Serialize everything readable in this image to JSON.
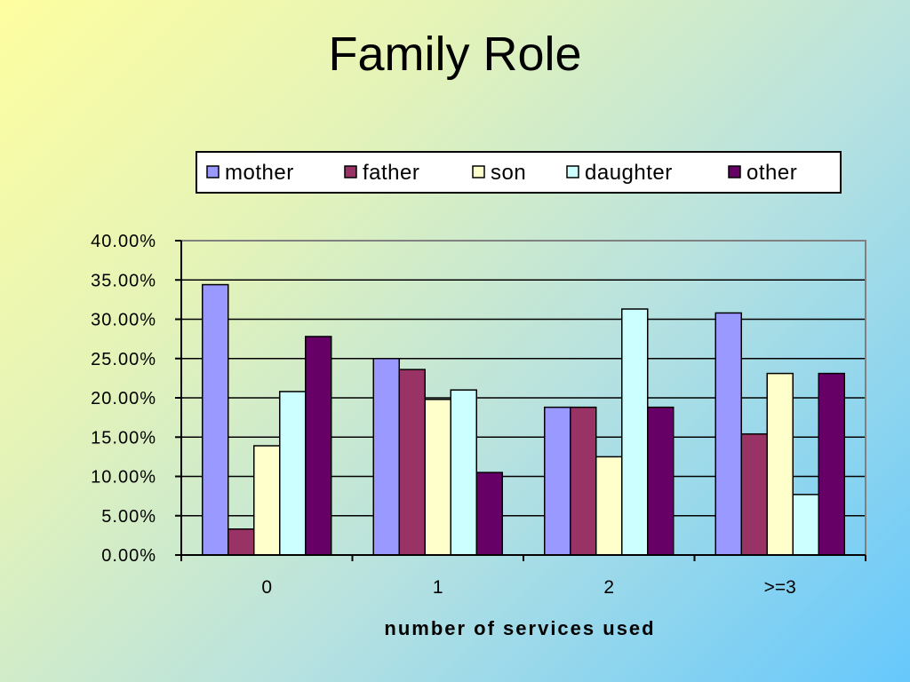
{
  "title": "Family Role",
  "chart_data": {
    "type": "bar",
    "title": "Family Role",
    "xlabel": "number of services used",
    "ylabel": "",
    "categories": [
      "0",
      "1",
      "2",
      ">=3"
    ],
    "y_ticks": [
      "0.00%",
      "5.00%",
      "10.00%",
      "15.00%",
      "20.00%",
      "25.00%",
      "30.00%",
      "35.00%",
      "40.00%"
    ],
    "ylim": [
      0,
      40
    ],
    "grid": true,
    "legend_position": "top",
    "series": [
      {
        "name": "mother",
        "color": "#9999ff",
        "values": [
          34.4,
          25.0,
          18.8,
          30.8
        ]
      },
      {
        "name": "father",
        "color": "#993366",
        "values": [
          3.3,
          23.6,
          18.8,
          15.4
        ]
      },
      {
        "name": "son",
        "color": "#ffffcc",
        "values": [
          13.9,
          19.8,
          12.5,
          23.1
        ]
      },
      {
        "name": "daughter",
        "color": "#ccffff",
        "values": [
          20.8,
          21.0,
          31.3,
          7.7
        ]
      },
      {
        "name": "other",
        "color": "#660066",
        "values": [
          27.8,
          10.5,
          18.8,
          23.1
        ]
      }
    ]
  }
}
